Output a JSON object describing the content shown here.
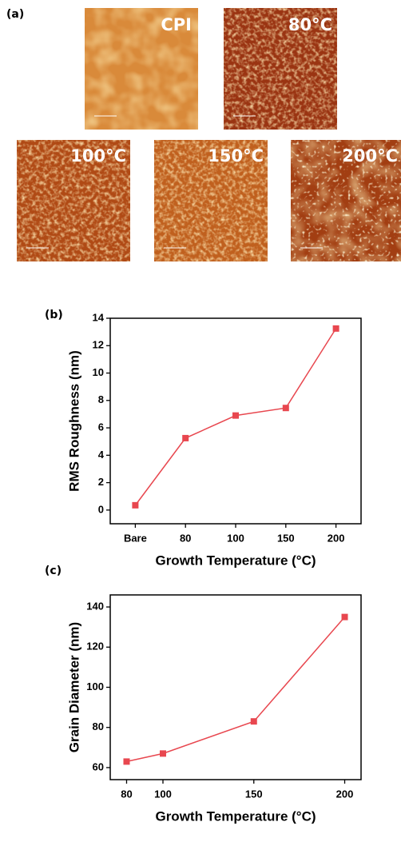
{
  "figure_label": "(a)",
  "images": [
    {
      "label": "CPI"
    },
    {
      "label": "80°C"
    },
    {
      "label": "100°C"
    },
    {
      "label": "150°C"
    },
    {
      "label": "200°C"
    }
  ],
  "chart_data": [
    {
      "type": "line",
      "label": "(b)",
      "categories": [
        "Bare",
        "80",
        "100",
        "150",
        "200"
      ],
      "values": [
        0.35,
        5.25,
        6.9,
        7.45,
        13.25
      ],
      "color": "#e8474f",
      "ylim": [
        -1,
        14
      ],
      "yticks": [
        0,
        2,
        4,
        6,
        8,
        10,
        12,
        14
      ],
      "xlabel": "Growth Temperature (°C)",
      "ylabel": "RMS Roughness (nm)"
    },
    {
      "type": "line",
      "label": "(c)",
      "x": [
        80,
        100,
        150,
        200
      ],
      "values": [
        63,
        67,
        83,
        135
      ],
      "color": "#e8474f",
      "xlim": [
        71,
        209
      ],
      "xticks": [
        80,
        100,
        150,
        200
      ],
      "ylim": [
        54,
        146
      ],
      "yticks": [
        60,
        80,
        100,
        120,
        140
      ],
      "xlabel": "Growth Temperature (°C)",
      "ylabel": "Grain Diameter (nm)"
    }
  ]
}
